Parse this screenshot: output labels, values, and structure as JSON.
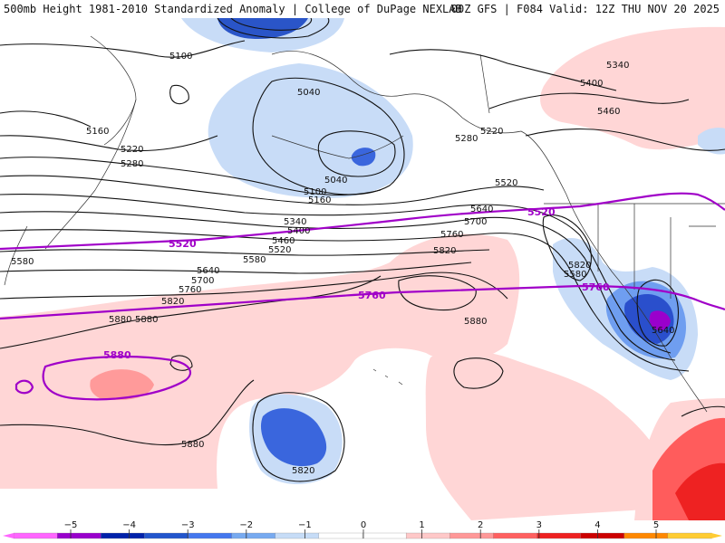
{
  "header": {
    "title_left": "500mb Height 1981-2010 Standardized Anomaly | College of DuPage NEXLAB",
    "title_right": "00Z GFS | F084 Valid: 12Z THU NOV 20 2025"
  },
  "contour_labels": [
    "5100",
    "5040",
    "5160",
    "5220",
    "5280",
    "5100",
    "5040",
    "5160",
    "5340",
    "5400",
    "5460",
    "5520",
    "5580",
    "5640",
    "5700",
    "5760",
    "5820",
    "5880",
    "5580",
    "5640",
    "5700",
    "5760",
    "5820",
    "5880",
    "5220",
    "5280",
    "5340",
    "5400",
    "5460",
    "5520",
    "5580",
    "5640",
    "5820",
    "5880",
    "5880",
    "5820"
  ],
  "purple_labels": [
    "5520",
    "5520",
    "5760",
    "5760",
    "5880"
  ],
  "colorbar": {
    "ticks": [
      "−5",
      "−4",
      "−3",
      "−2",
      "−1",
      "0",
      "1",
      "2",
      "3",
      "4",
      "5"
    ],
    "colors": [
      "#ff66ff",
      "#9900cc",
      "#0022aa",
      "#2255cc",
      "#4477ee",
      "#77aaf0",
      "#c6dcf7",
      "#ffffff",
      "#ffffff",
      "#ffc8c8",
      "#ff9898",
      "#ff6060",
      "#ee2020",
      "#cc0000",
      "#ff8800",
      "#ffcc33"
    ]
  }
}
